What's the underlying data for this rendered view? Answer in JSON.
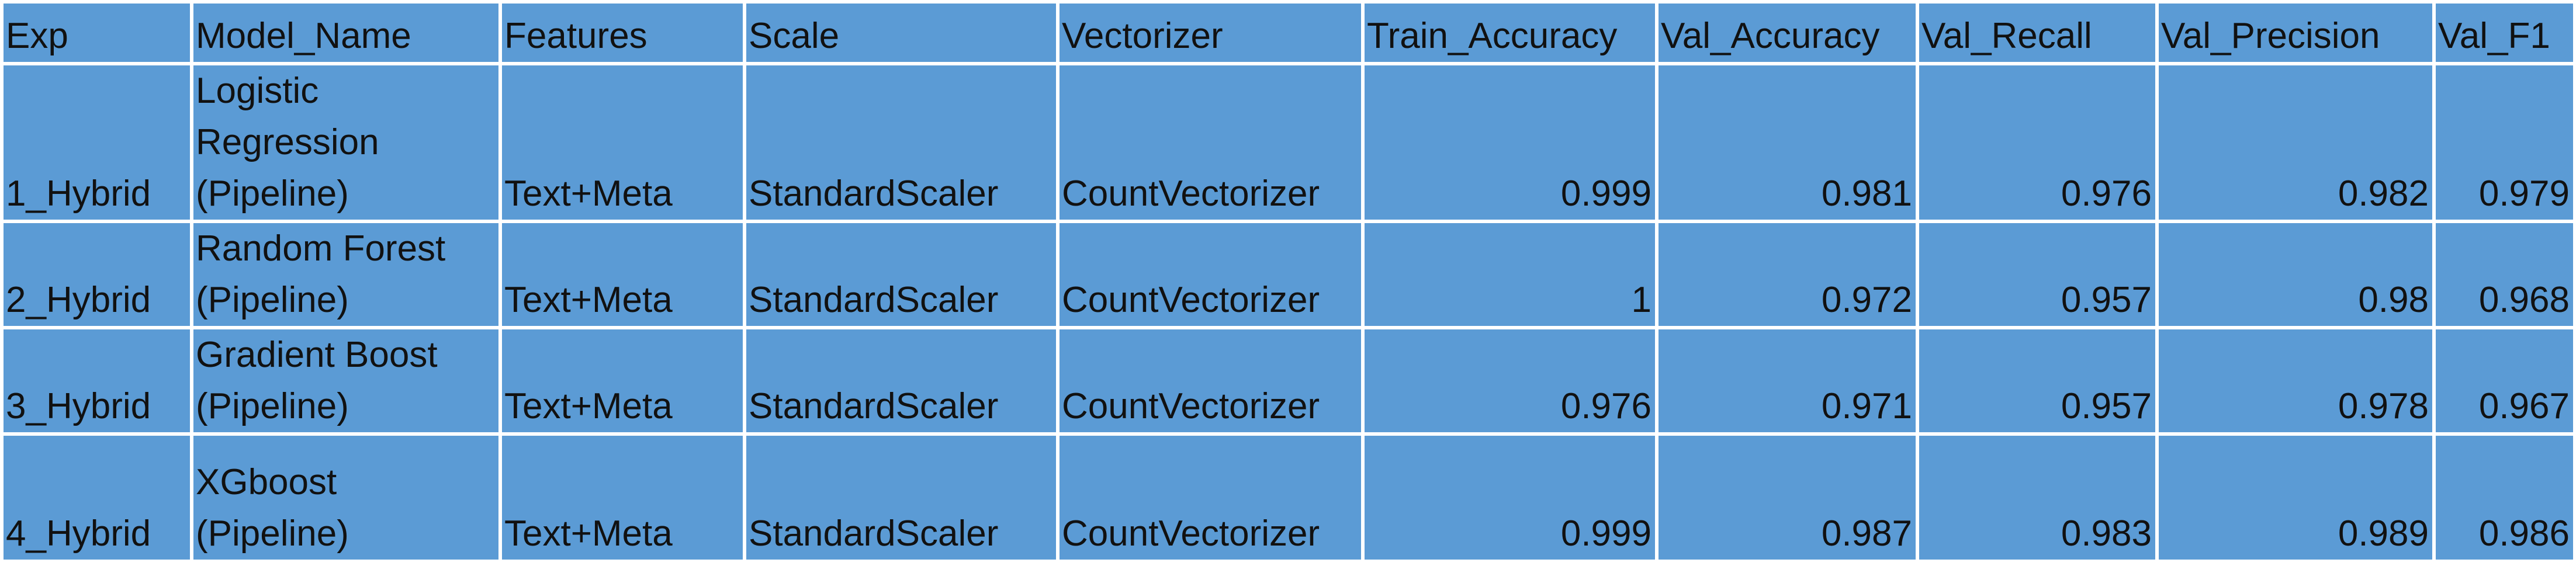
{
  "table": {
    "headers": [
      "Exp",
      "Model_Name",
      "Features",
      "Scale",
      "Vectorizer",
      "Train_Accuracy",
      "Val_Accuracy",
      "Val_Recall",
      "Val_Precision",
      "Val_F1"
    ],
    "rows": [
      {
        "exp": "1_Hybrid",
        "model_name": "Logistic Regression (Pipeline)",
        "features": "Text+Meta",
        "scale": "StandardScaler",
        "vectorizer": "CountVectorizer",
        "train_accuracy": "0.999",
        "val_accuracy": "0.981",
        "val_recall": "0.976",
        "val_precision": "0.982",
        "val_f1": "0.979"
      },
      {
        "exp": "2_Hybrid",
        "model_name": "Random Forest (Pipeline)",
        "features": "Text+Meta",
        "scale": "StandardScaler",
        "vectorizer": "CountVectorizer",
        "train_accuracy": "1",
        "val_accuracy": "0.972",
        "val_recall": "0.957",
        "val_precision": "0.98",
        "val_f1": "0.968"
      },
      {
        "exp": "3_Hybrid",
        "model_name": "Gradient Boost (Pipeline)",
        "features": "Text+Meta",
        "scale": "StandardScaler",
        "vectorizer": "CountVectorizer",
        "train_accuracy": "0.976",
        "val_accuracy": "0.971",
        "val_recall": "0.957",
        "val_precision": "0.978",
        "val_f1": "0.967"
      },
      {
        "exp": "4_Hybrid",
        "model_name": "XGboost (Pipeline)",
        "features": "Text+Meta",
        "scale": "StandardScaler",
        "vectorizer": "CountVectorizer",
        "train_accuracy": "0.999",
        "val_accuracy": "0.987",
        "val_recall": "0.983",
        "val_precision": "0.989",
        "val_f1": "0.986"
      }
    ]
  },
  "colors": {
    "cell_fill": "#5b9bd5",
    "grid_line": "#ffffff",
    "text": "#111111"
  }
}
